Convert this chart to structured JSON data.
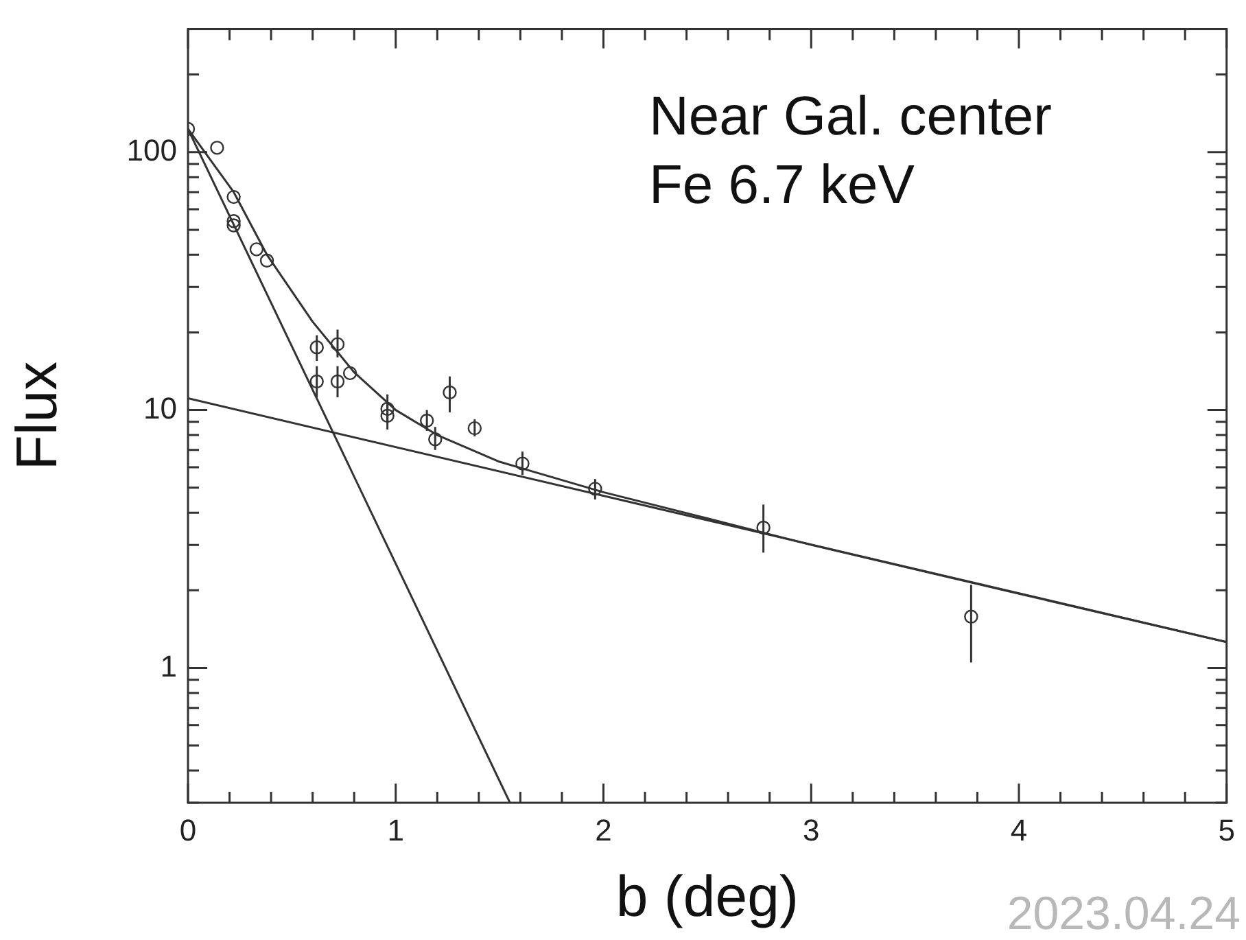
{
  "chart_data": {
    "type": "scatter",
    "xlabel": "b (deg)",
    "ylabel": "Flux",
    "annotations": [
      "Near Gal. center",
      "Fe 6.7 keV",
      "2023.04.24"
    ],
    "log": "y",
    "grid": false,
    "legend": false,
    "marker": "circle",
    "xlim": [
      0,
      5
    ],
    "ylim": [
      0.3,
      300
    ],
    "xticks": [
      0,
      {
        "value": 0.2,
        "label": null
      },
      {
        "value": 0.4,
        "label": null
      },
      {
        "value": 0.6,
        "label": null
      },
      {
        "value": 0.8,
        "label": null
      },
      1,
      {
        "value": 1.2,
        "label": null
      },
      {
        "value": 1.4,
        "label": null
      },
      {
        "value": 1.6,
        "label": null
      },
      {
        "value": 1.8,
        "label": null
      },
      2,
      {
        "value": 2.2,
        "label": null
      },
      {
        "value": 2.4,
        "label": null
      },
      {
        "value": 2.6,
        "label": null
      },
      {
        "value": 2.8,
        "label": null
      },
      3,
      {
        "value": 3.2,
        "label": null
      },
      {
        "value": 3.4,
        "label": null
      },
      {
        "value": 3.6,
        "label": null
      },
      {
        "value": 3.8,
        "label": null
      },
      4,
      {
        "value": 4.2,
        "label": null
      },
      {
        "value": 4.4,
        "label": null
      },
      {
        "value": 4.6,
        "label": null
      },
      {
        "value": 4.8,
        "label": null
      },
      5
    ],
    "yticks": [
      {
        "value": 0.3,
        "label": null
      },
      {
        "value": 0.4,
        "label": null
      },
      {
        "value": 0.5,
        "label": null
      },
      {
        "value": 0.6,
        "label": null
      },
      {
        "value": 0.7,
        "label": null
      },
      {
        "value": 0.8,
        "label": null
      },
      {
        "value": 0.9,
        "label": null
      },
      1,
      {
        "value": 2,
        "label": null
      },
      {
        "value": 3,
        "label": null
      },
      {
        "value": 4,
        "label": null
      },
      {
        "value": 5,
        "label": null
      },
      {
        "value": 6,
        "label": null
      },
      {
        "value": 7,
        "label": null
      },
      {
        "value": 8,
        "label": null
      },
      {
        "value": 9,
        "label": null
      },
      10,
      {
        "value": 20,
        "label": null
      },
      {
        "value": 30,
        "label": null
      },
      {
        "value": 40,
        "label": null
      },
      {
        "value": 50,
        "label": null
      },
      {
        "value": 60,
        "label": null
      },
      {
        "value": 70,
        "label": null
      },
      {
        "value": 80,
        "label": null
      },
      {
        "value": 90,
        "label": null
      },
      100,
      {
        "value": 200,
        "label": null
      },
      {
        "value": 300,
        "label": null
      }
    ],
    "series": [
      {
        "color": "#333333",
        "x": [
          0,
          0.14,
          0.22,
          0.22,
          0.22,
          0.33,
          0.38,
          0.62,
          0.62,
          0.72,
          0.72,
          0.78,
          0.96,
          0.96,
          1.15,
          1.19,
          1.26,
          1.38,
          1.61,
          1.96,
          2.77,
          3.77
        ],
        "values": [
          123,
          104,
          67,
          54,
          52,
          42,
          38,
          17.5,
          12.9,
          18,
          12.9,
          13.9,
          10.1,
          9.5,
          9.1,
          7.7,
          11.7,
          8.5,
          6.2,
          4.95,
          3.5,
          1.58
        ],
        "errors": [
          null,
          null,
          null,
          null,
          null,
          null,
          null,
          [
            15.5,
            19.5
          ],
          [
            11.2,
            14.8
          ],
          [
            16,
            20.5
          ],
          [
            11.2,
            14.8
          ],
          null,
          [
            8.9,
            11.5
          ],
          [
            8.4,
            10.8
          ],
          [
            8.3,
            10
          ],
          [
            7,
            8.6
          ],
          [
            9.8,
            13.5
          ],
          [
            7.9,
            9.2
          ],
          [
            5.6,
            6.9
          ],
          [
            4.5,
            5.4
          ],
          [
            2.8,
            4.3
          ],
          [
            1.05,
            2.1
          ]
        ]
      },
      {
        "type": "line",
        "color": "#333333",
        "marker": "none",
        "x": [
          0,
          0.22,
          0.38,
          0.6,
          0.8,
          1.0,
          1.2,
          1.5,
          2.0,
          2.5,
          3,
          4,
          5
        ],
        "values": [
          123,
          70,
          40,
          22,
          14,
          10,
          8,
          6.3,
          4.8,
          3.8,
          3.0,
          1.94,
          1.26
        ]
      },
      {
        "type": "line",
        "color": "#333333",
        "marker": "none",
        "x": [
          0,
          1.55
        ],
        "values": [
          123,
          0.3
        ]
      },
      {
        "type": "line",
        "color": "#333333",
        "marker": "none",
        "x": [
          0,
          5
        ],
        "values": [
          11.1,
          1.26
        ]
      }
    ]
  }
}
